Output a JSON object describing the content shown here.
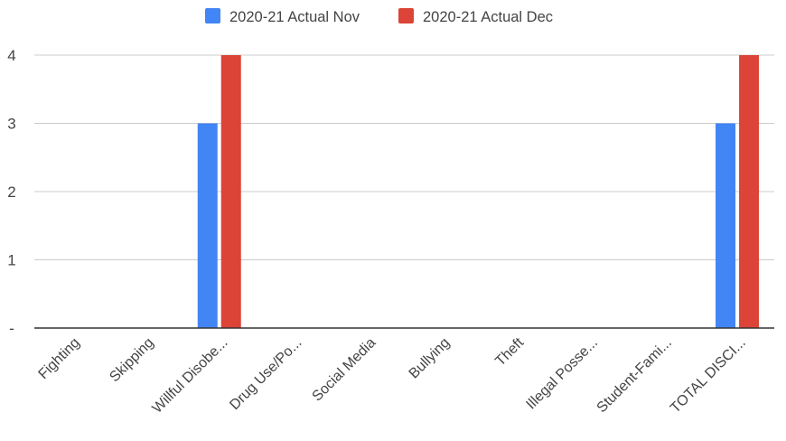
{
  "chart_data": {
    "type": "bar",
    "categories": [
      "Fighting",
      "Skipping",
      "Willful Disobe...",
      "Drug Use/Po...",
      "Social Media",
      "Bullying",
      "Theft",
      "Illegal Posse...",
      "Student-Fami...",
      "TOTAL DISCI..."
    ],
    "series": [
      {
        "name": "2020-21 Actual Nov",
        "color": "#4285f4",
        "values": [
          0,
          0,
          3,
          0,
          0,
          0,
          0,
          0,
          0,
          3
        ]
      },
      {
        "name": "2020-21 Actual Dec",
        "color": "#db4437",
        "values": [
          0,
          0,
          4,
          0,
          0,
          0,
          0,
          0,
          0,
          4
        ]
      }
    ],
    "yticks": [
      {
        "value": 0,
        "label": "-"
      },
      {
        "value": 1,
        "label": "1"
      },
      {
        "value": 2,
        "label": "2"
      },
      {
        "value": 3,
        "label": "3"
      },
      {
        "value": 4,
        "label": "4"
      }
    ],
    "ylim": [
      0,
      4
    ],
    "grid": true,
    "legend_position": "top-center",
    "title": "",
    "xlabel": "",
    "ylabel": ""
  }
}
